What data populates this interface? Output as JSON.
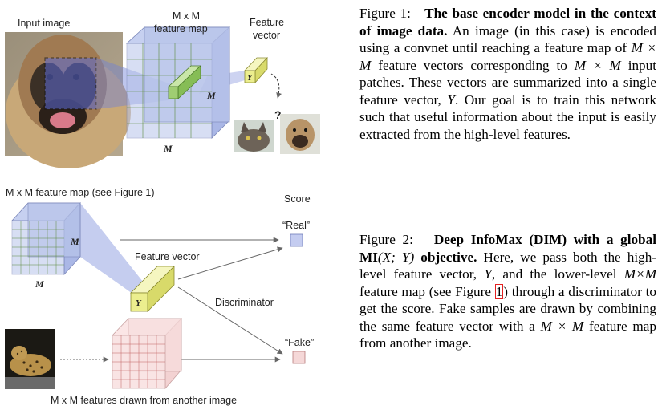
{
  "figure1": {
    "input_label": "Input image",
    "feature_map_label_1": "M x M",
    "feature_map_label_2": "feature map",
    "feature_vector_label_1": "Feature",
    "feature_vector_label_2": "vector",
    "y_symbol": "Y",
    "m_symbol": "M",
    "question_mark": "?"
  },
  "figure2": {
    "feature_map_title": "M x M feature map (see Figure 1)",
    "score_label": "Score",
    "real_label": "“Real”",
    "fake_label": "“Fake”",
    "feature_vector_label": "Feature vector",
    "discriminator_label": "Discriminator",
    "other_image_label": "M x M features drawn from another image",
    "y_symbol": "Y",
    "m_symbol": "M"
  },
  "caption1": {
    "prefix": "Figure 1:",
    "bold": "The base encoder model in the context of image data.",
    "text_a": "An image (in this case) is encoded using a convnet until reaching a feature map of",
    "math_a": "M × M",
    "text_b": "feature vectors corresponding to",
    "math_b": "M × M",
    "text_c": "input patches. These vectors are summarized into a single feature vector,",
    "math_c": "Y",
    "text_d": ". Our goal is to train this network such that useful information about the input is easily extracted from the high-level features."
  },
  "caption2": {
    "prefix": "Figure 2:",
    "bold_a": "Deep InfoMax (DIM) with a global MI",
    "bold_math": "(X; Y)",
    "bold_b": "objective.",
    "text_a": "Here, we pass both the high-level feature vector,",
    "math_a": "Y",
    "text_b": ", and the lower-level",
    "math_b": "M×M",
    "text_c": "feature map (see Figure",
    "ref": "1",
    "text_d": ") through a discriminator to get the score. Fake samples are drawn by combining the same feature vector with a",
    "math_c": "M × M",
    "text_e": "feature map from another image."
  },
  "colors": {
    "blue_block": "#b8c4ea",
    "green_block": "#9fcd72",
    "yellow_block": "#ecee8e",
    "real_box": "#c4ccf0",
    "fake_box": "#f5d8d8",
    "ref_outline": "#e32020"
  }
}
